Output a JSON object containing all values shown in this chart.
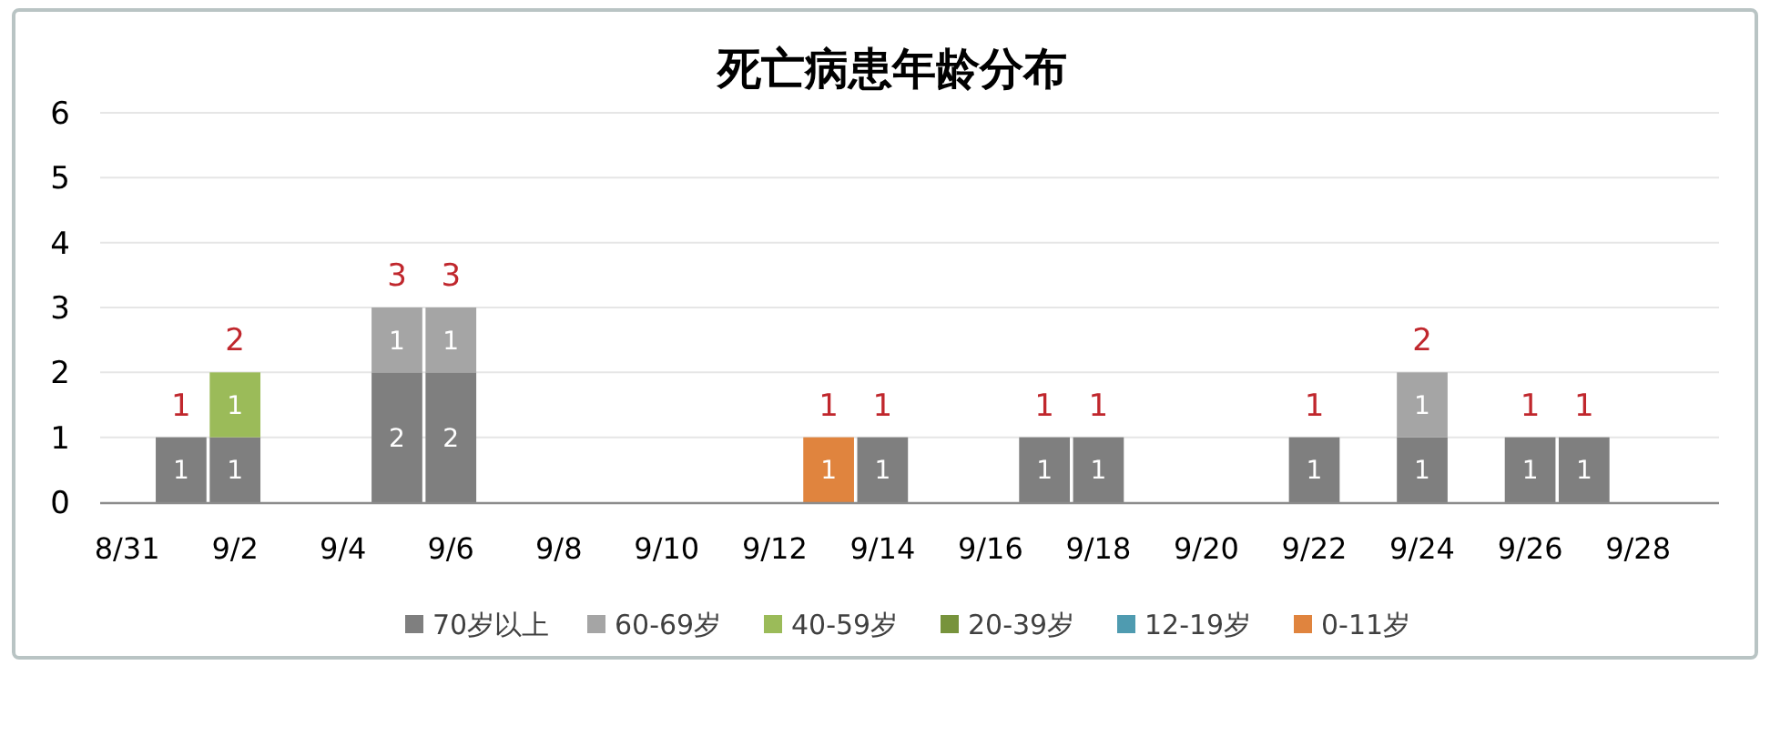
{
  "chart_data": {
    "type": "bar",
    "title": "死亡病患年龄分布",
    "categories": [
      "8/31",
      null,
      "9/2",
      null,
      "9/4",
      null,
      "9/6",
      null,
      "9/8",
      null,
      "9/10",
      null,
      "9/12",
      null,
      "9/14",
      null,
      "9/16",
      null,
      "9/18",
      null,
      "9/20",
      null,
      "9/22",
      null,
      "9/24",
      null,
      "9/26",
      null,
      "9/28",
      null
    ],
    "series": [
      {
        "name": "70岁以上",
        "color": "#7f7f7f",
        "values": [
          null,
          1,
          1,
          null,
          null,
          2,
          2,
          null,
          null,
          null,
          null,
          null,
          null,
          null,
          1,
          null,
          null,
          1,
          1,
          null,
          null,
          null,
          1,
          null,
          1,
          null,
          1,
          1,
          null,
          null
        ]
      },
      {
        "name": "60-69岁",
        "color": "#a5a5a5",
        "values": [
          null,
          null,
          null,
          null,
          null,
          1,
          1,
          null,
          null,
          null,
          null,
          null,
          null,
          null,
          null,
          null,
          null,
          null,
          null,
          null,
          null,
          null,
          null,
          null,
          1,
          null,
          null,
          null,
          null,
          null
        ]
      },
      {
        "name": "40-59岁",
        "color": "#9bbb59",
        "values": [
          null,
          null,
          1,
          null,
          null,
          null,
          null,
          null,
          null,
          null,
          null,
          null,
          null,
          null,
          null,
          null,
          null,
          null,
          null,
          null,
          null,
          null,
          null,
          null,
          null,
          null,
          null,
          null,
          null,
          null
        ]
      },
      {
        "name": "20-39岁",
        "color": "#77933c",
        "values": [
          null,
          null,
          null,
          null,
          null,
          null,
          null,
          null,
          null,
          null,
          null,
          null,
          null,
          null,
          null,
          null,
          null,
          null,
          null,
          null,
          null,
          null,
          null,
          null,
          null,
          null,
          null,
          null,
          null,
          null
        ]
      },
      {
        "name": "12-19岁",
        "color": "#4f9bb0",
        "values": [
          null,
          null,
          null,
          null,
          null,
          null,
          null,
          null,
          null,
          null,
          null,
          null,
          null,
          null,
          null,
          null,
          null,
          null,
          null,
          null,
          null,
          null,
          null,
          null,
          null,
          null,
          null,
          null,
          null,
          null
        ]
      },
      {
        "name": "0-11岁",
        "color": "#e0843e",
        "values": [
          null,
          null,
          null,
          null,
          null,
          null,
          null,
          null,
          null,
          null,
          null,
          null,
          null,
          1,
          null,
          null,
          null,
          null,
          null,
          null,
          null,
          null,
          null,
          null,
          null,
          null,
          null,
          null,
          null,
          null
        ]
      }
    ],
    "stacked": true,
    "totals": [
      null,
      "1",
      "2",
      null,
      null,
      "3",
      "3",
      null,
      null,
      null,
      null,
      null,
      null,
      "1",
      "1",
      null,
      null,
      "1",
      "1",
      null,
      null,
      null,
      "1",
      null,
      "2",
      null,
      "1",
      "1",
      null,
      null
    ],
    "data_labels": true,
    "ylim": [
      0,
      6
    ],
    "yticks": [
      0,
      1,
      2,
      3,
      4,
      5,
      6
    ],
    "grid": "y",
    "legend": "bottom"
  }
}
